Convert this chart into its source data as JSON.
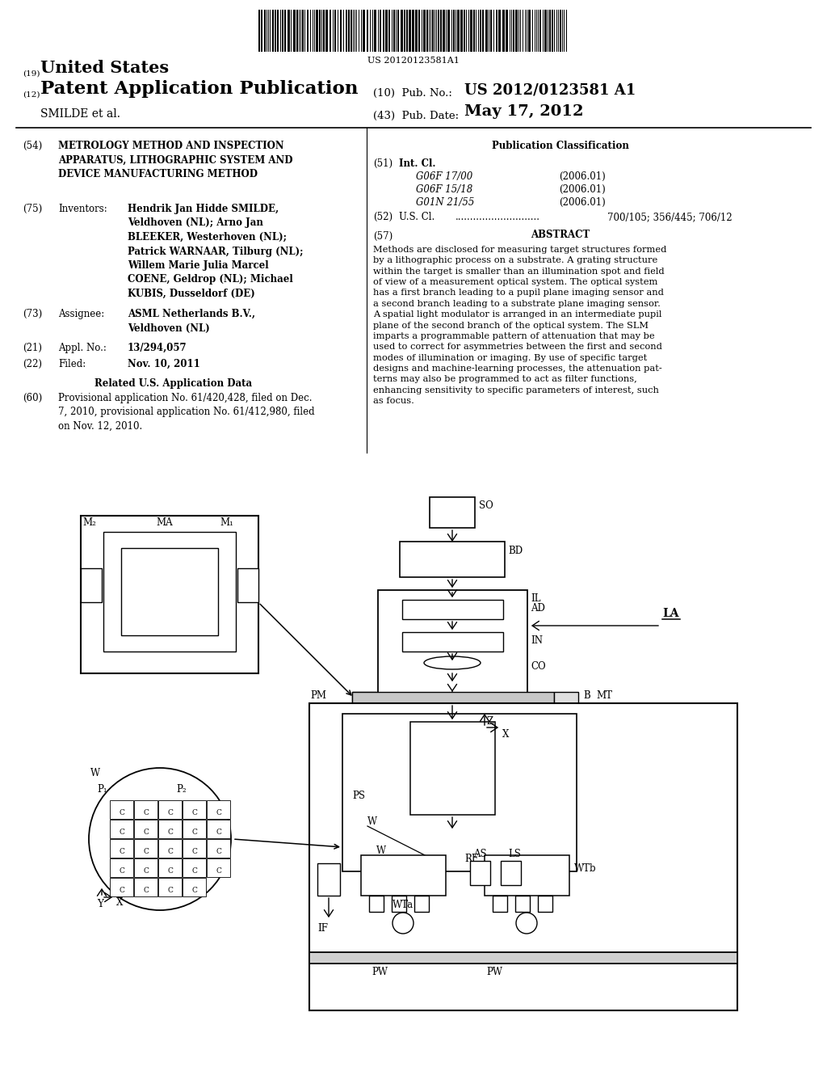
{
  "bg_color": "#ffffff",
  "barcode_text": "US 20120123581A1",
  "title_19_super": "(19)",
  "title_19_text": "United States",
  "title_12_super": "(12)",
  "title_12_text": "Patent Application Publication",
  "pub_no_label": "(10)  Pub. No.:",
  "pub_no_value": "US 2012/0123581 A1",
  "pub_date_label": "(43)  Pub. Date:",
  "pub_date_value": "May 17, 2012",
  "author_line": "SMILDE et al.",
  "field54_text": "METROLOGY METHOD AND INSPECTION\nAPPARATUS, LITHOGRAPHIC SYSTEM AND\nDEVICE MANUFACTURING METHOD",
  "field75_label": "Inventors:",
  "field75_text": "Hendrik Jan Hidde SMILDE,\nVeldhoven (NL); Arno Jan\nBLEEKER, Westerhoven (NL);\nPatrick WARNAAR, Tilburg (NL);\nWillem Marie Julia Marcel\nCOENE, Geldrop (NL); Michael\nKUBIS, Dusseldorf (DE)",
  "field73_label": "Assignee:",
  "field73_text": "ASML Netherlands B.V.,\nVeldhoven (NL)",
  "field21_label": "Appl. No.:",
  "field21_text": "13/294,057",
  "field22_label": "Filed:",
  "field22_text": "Nov. 10, 2011",
  "related_header": "Related U.S. Application Data",
  "field60_text": "Provisional application No. 61/420,428, filed on Dec.\n7, 2010, provisional application No. 61/412,980, filed\non Nov. 12, 2010.",
  "pub_class_header": "Publication Classification",
  "field51_label": "Int. Cl.",
  "field51_entries": [
    [
      "G06F 17/00",
      "(2006.01)"
    ],
    [
      "G06F 15/18",
      "(2006.01)"
    ],
    [
      "G01N 21/55",
      "(2006.01)"
    ]
  ],
  "field52_label": "U.S. Cl.",
  "field52_text": "700/105; 356/445; 706/12",
  "field57_label": "ABSTRACT",
  "field57_text": "Methods are disclosed for measuring target structures formed\nby a lithographic process on a substrate. A grating structure\nwithin the target is smaller than an illumination spot and field\nof view of a measurement optical system. The optical system\nhas a first branch leading to a pupil plane imaging sensor and\na second branch leading to a substrate plane imaging sensor.\nA spatial light modulator is arranged in an intermediate pupil\nplane of the second branch of the optical system. The SLM\nimparts a programmable pattern of attenuation that may be\nused to correct for asymmetries between the first and second\nmodes of illumination or imaging. By use of specific target\ndesigns and machine-learning processes, the attenuation pat-\nterns may also be programmed to act as filter functions,\nenhancing sensitivity to specific parameters of interest, such\nas focus."
}
